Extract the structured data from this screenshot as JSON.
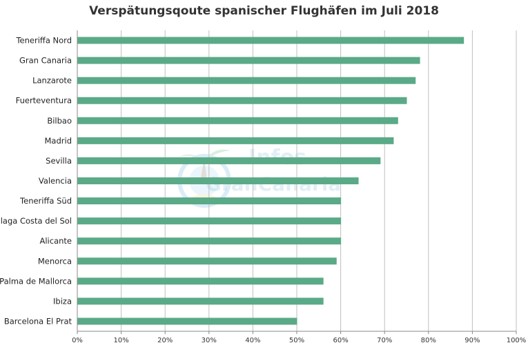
{
  "chart_data": {
    "type": "bar",
    "orientation": "horizontal",
    "title": "Verspätungsqoute spanischer Flughäfen im Juli 2018",
    "xlabel": "",
    "ylabel": "",
    "xlim": [
      0,
      100
    ],
    "x_ticks": [
      "0%",
      "10%",
      "20%",
      "30%",
      "40%",
      "50%",
      "60%",
      "70%",
      "80%",
      "90%",
      "100%"
    ],
    "categories": [
      "Teneriffa Nord",
      "Gran Canaria",
      "Lanzarote",
      "Fuerteventura",
      "Bilbao",
      "Madrid",
      "Sevilla",
      "Valencia",
      "Teneriffa Süd",
      "Malaga Costa del Sol",
      "Alicante",
      "Menorca",
      "Palma de Mallorca",
      "Ibiza",
      "Barcelona El Prat"
    ],
    "values": [
      88,
      78,
      77,
      75,
      73,
      72,
      69,
      64,
      60,
      60,
      60,
      59,
      56,
      56,
      50
    ],
    "bar_color": "#5aaa87",
    "grid": "vertical",
    "legend": "none"
  },
  "watermark": {
    "line1": "Infos",
    "line2": "GranCanaria"
  },
  "colors": {
    "bar": "#5aaa87",
    "grid": "#bfbfbf",
    "axis": "#888888"
  }
}
